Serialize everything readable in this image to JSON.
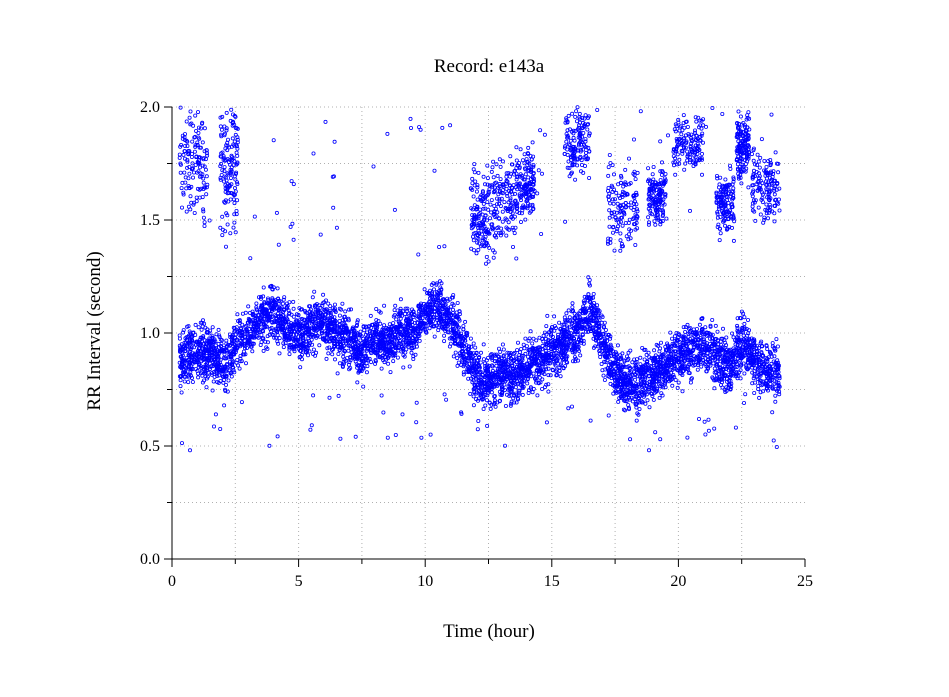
{
  "chart_data": {
    "type": "scatter",
    "title": "Record:  e143a",
    "xlabel": "Time (hour)",
    "ylabel": "RR Interval (second)",
    "xlim": [
      0,
      25
    ],
    "ylim": [
      0,
      2.0
    ],
    "xticks": [
      0,
      5,
      10,
      15,
      20,
      25
    ],
    "xtick_labels": [
      "0",
      "5",
      "10",
      "15",
      "20",
      "25"
    ],
    "yticks": [
      0.0,
      0.5,
      1.0,
      1.5,
      2.0
    ],
    "ytick_labels": [
      "0.0",
      "0.5",
      "1.0",
      "1.5",
      "2.0"
    ],
    "grid": true,
    "grid_style": "dotted",
    "marker": "open-circle",
    "color": "#0000ff",
    "data_span_hours": [
      0.3,
      24.0
    ],
    "series": [
      {
        "name": "",
        "trend": {
          "x": [
            0.3,
            0.7,
            1.2,
            1.7,
            2.1,
            2.5,
            3.0,
            3.5,
            4.0,
            4.5,
            5.0,
            5.5,
            6.0,
            6.5,
            7.0,
            7.5,
            8.0,
            8.5,
            9.0,
            9.5,
            10.0,
            10.5,
            11.0,
            11.5,
            12.0,
            12.5,
            13.0,
            13.5,
            14.0,
            14.5,
            15.0,
            15.5,
            16.0,
            16.5,
            17.0,
            17.5,
            18.0,
            18.5,
            19.0,
            19.5,
            20.0,
            20.5,
            21.0,
            21.5,
            22.0,
            22.5,
            23.0,
            23.5,
            24.0
          ],
          "y": [
            0.88,
            0.9,
            0.92,
            0.9,
            0.85,
            0.95,
            1.0,
            1.05,
            1.1,
            1.03,
            0.98,
            1.02,
            1.05,
            1.0,
            0.97,
            0.92,
            0.98,
            0.95,
            1.02,
            1.0,
            1.1,
            1.12,
            1.05,
            0.95,
            0.8,
            0.78,
            0.82,
            0.8,
            0.85,
            0.88,
            0.92,
            0.96,
            1.0,
            1.12,
            0.95,
            0.82,
            0.78,
            0.8,
            0.82,
            0.86,
            0.9,
            0.93,
            0.94,
            0.9,
            0.85,
            0.96,
            0.88,
            0.84,
            0.83
          ]
        },
        "spread": 0.18,
        "upper_clusters": [
          {
            "x": [
              0.3,
              1.4
            ],
            "y": [
              1.55,
              1.95
            ]
          },
          {
            "x": [
              1.9,
              2.6
            ],
            "y": [
              1.45,
              2.0
            ]
          },
          {
            "x": [
              11.8,
              12.6
            ],
            "y": [
              1.35,
              1.7
            ]
          },
          {
            "x": [
              12.6,
              13.6
            ],
            "y": [
              1.4,
              1.75
            ]
          },
          {
            "x": [
              13.6,
              14.3
            ],
            "y": [
              1.5,
              1.8
            ]
          },
          {
            "x": [
              15.5,
              16.5
            ],
            "y": [
              1.7,
              2.0
            ]
          },
          {
            "x": [
              17.2,
              18.4
            ],
            "y": [
              1.4,
              1.75
            ]
          },
          {
            "x": [
              18.8,
              19.5
            ],
            "y": [
              1.5,
              1.7
            ]
          },
          {
            "x": [
              19.8,
              21.0
            ],
            "y": [
              1.7,
              1.95
            ]
          },
          {
            "x": [
              21.5,
              22.2
            ],
            "y": [
              1.45,
              1.7
            ]
          },
          {
            "x": [
              22.3,
              22.8
            ],
            "y": [
              1.7,
              1.95
            ]
          },
          {
            "x": [
              22.9,
              24.0
            ],
            "y": [
              1.5,
              1.8
            ]
          }
        ],
        "lower_outliers_min": 0.48
      }
    ]
  }
}
